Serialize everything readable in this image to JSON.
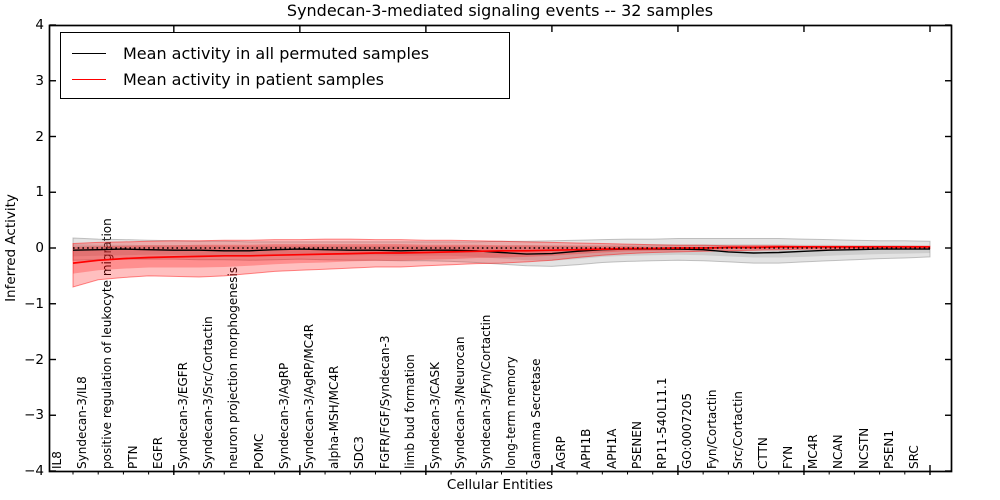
{
  "title": "Syndecan-3-mediated signaling events -- 32 samples",
  "legend": {
    "items": [
      {
        "label": "Mean activity in all permuted samples",
        "color": "#000000"
      },
      {
        "label": "Mean activity in patient samples",
        "color": "#ff0000"
      }
    ]
  },
  "colors": {
    "permuted_line": "#000000",
    "patient_line": "#ff0000",
    "permuted_band": "#808080",
    "patient_band": "#ff0000",
    "background": "#ffffff"
  },
  "chart_data": {
    "type": "line",
    "title": "Syndecan-3-mediated signaling events -- 32 samples",
    "xlabel": "Cellular Entities",
    "ylabel": "Inferred Activity",
    "ylim": [
      -4,
      4
    ],
    "grid": false,
    "legend_position": "upper left",
    "yticks": {
      "values": [
        4,
        3,
        2,
        1,
        0,
        -1,
        -2,
        -3,
        -4
      ],
      "labels": [
        "4",
        "3",
        "2",
        "1",
        "0",
        "−1",
        "−2",
        "−3",
        "−4"
      ]
    },
    "xtick_major_indices": [
      4,
      9,
      14,
      19,
      24,
      29,
      34
    ],
    "categories": [
      "IL8",
      "Syndecan-3/IL8",
      "positive regulation of leukocyte migration",
      "PTN",
      "EGFR",
      "Syndecan-3/EGFR",
      "Syndecan-3/Src/Cortactin",
      "neuron projection morphogenesis",
      "POMC",
      "Syndecan-3/AgRP",
      "Syndecan-3/AgRP/MC4R",
      "alpha-MSH/MC4R",
      "SDC3",
      "FGFR/FGF/Syndecan-3",
      "limb bud formation",
      "Syndecan-3/CASK",
      "Syndecan-3/Neurocan",
      "Syndecan-3/Fyn/Cortactin",
      "long-term memory",
      "Gamma Secretase",
      "AGRP",
      "APH1B",
      "APH1A",
      "PSENEN",
      "RP11-540L11.1",
      "GO:0007205",
      "Fyn/Cortactin",
      "Src/Cortactin",
      "CTTN",
      "FYN",
      "MC4R",
      "NCAN",
      "NCSTN",
      "PSEN1",
      "SRC"
    ],
    "zero_line": 0,
    "series": [
      {
        "name": "Mean activity in all permuted samples",
        "color": "#000000",
        "width": 1.4,
        "values": [
          -0.04,
          -0.03,
          -0.02,
          -0.03,
          -0.04,
          -0.04,
          -0.05,
          -0.05,
          -0.03,
          -0.02,
          -0.03,
          -0.04,
          -0.04,
          -0.05,
          -0.04,
          -0.04,
          -0.05,
          -0.08,
          -0.11,
          -0.1,
          -0.06,
          -0.03,
          -0.02,
          -0.02,
          -0.02,
          -0.03,
          -0.07,
          -0.09,
          -0.08,
          -0.06,
          -0.04,
          -0.03,
          -0.02,
          -0.02,
          -0.02
        ]
      },
      {
        "name": "Mean activity in patient samples",
        "color": "#ff0000",
        "width": 1.7,
        "values": [
          -0.27,
          -0.22,
          -0.19,
          -0.17,
          -0.16,
          -0.15,
          -0.14,
          -0.14,
          -0.13,
          -0.12,
          -0.11,
          -0.1,
          -0.09,
          -0.09,
          -0.08,
          -0.07,
          -0.06,
          -0.05,
          -0.05,
          -0.04,
          -0.03,
          -0.02,
          -0.01,
          -0.01,
          0.0,
          0.0,
          0.01,
          0.01,
          0.02,
          0.02,
          0.02,
          0.02,
          0.02,
          0.02,
          0.02
        ]
      }
    ],
    "bands": [
      {
        "name": "permuted-outer",
        "color": "#808080",
        "opacity": 0.22,
        "edge": "#808080",
        "upper": [
          0.18,
          0.16,
          0.15,
          0.14,
          0.13,
          0.12,
          0.12,
          0.11,
          0.11,
          0.11,
          0.11,
          0.11,
          0.11,
          0.11,
          0.11,
          0.11,
          0.11,
          0.12,
          0.12,
          0.13,
          0.14,
          0.15,
          0.16,
          0.16,
          0.17,
          0.17,
          0.17,
          0.17,
          0.17,
          0.16,
          0.15,
          0.14,
          0.13,
          0.13,
          0.12
        ],
        "lower": [
          -0.22,
          -0.21,
          -0.2,
          -0.2,
          -0.2,
          -0.21,
          -0.21,
          -0.22,
          -0.21,
          -0.2,
          -0.21,
          -0.22,
          -0.22,
          -0.23,
          -0.23,
          -0.24,
          -0.26,
          -0.29,
          -0.32,
          -0.33,
          -0.3,
          -0.26,
          -0.24,
          -0.23,
          -0.22,
          -0.23,
          -0.25,
          -0.27,
          -0.27,
          -0.25,
          -0.23,
          -0.21,
          -0.19,
          -0.18,
          -0.16
        ]
      },
      {
        "name": "permuted-inner",
        "color": "#808080",
        "opacity": 0.22,
        "edge": "none",
        "upper": [
          0.07,
          0.06,
          0.06,
          0.05,
          0.05,
          0.05,
          0.04,
          0.04,
          0.04,
          0.04,
          0.04,
          0.04,
          0.04,
          0.04,
          0.04,
          0.04,
          0.04,
          0.04,
          0.05,
          0.05,
          0.05,
          0.06,
          0.06,
          0.07,
          0.07,
          0.07,
          0.07,
          0.07,
          0.07,
          0.06,
          0.06,
          0.05,
          0.05,
          0.05,
          0.04
        ],
        "lower": [
          -0.15,
          -0.14,
          -0.13,
          -0.12,
          -0.12,
          -0.13,
          -0.13,
          -0.14,
          -0.13,
          -0.12,
          -0.12,
          -0.13,
          -0.13,
          -0.14,
          -0.14,
          -0.14,
          -0.16,
          -0.19,
          -0.22,
          -0.23,
          -0.2,
          -0.16,
          -0.14,
          -0.13,
          -0.12,
          -0.13,
          -0.15,
          -0.17,
          -0.17,
          -0.16,
          -0.14,
          -0.12,
          -0.11,
          -0.1,
          -0.09
        ]
      },
      {
        "name": "patient-outer",
        "color": "#ff0000",
        "opacity": 0.25,
        "edge": "#ff0000",
        "upper": [
          0.08,
          0.1,
          0.11,
          0.12,
          0.13,
          0.13,
          0.14,
          0.14,
          0.15,
          0.15,
          0.16,
          0.16,
          0.15,
          0.15,
          0.14,
          0.14,
          0.13,
          0.12,
          0.11,
          0.1,
          0.09,
          0.08,
          0.07,
          0.06,
          0.05,
          0.05,
          0.04,
          0.04,
          0.04,
          0.03,
          0.03,
          0.03,
          0.03,
          0.03,
          0.03
        ],
        "lower": [
          -0.7,
          -0.57,
          -0.53,
          -0.5,
          -0.51,
          -0.52,
          -0.5,
          -0.46,
          -0.42,
          -0.4,
          -0.38,
          -0.36,
          -0.34,
          -0.34,
          -0.32,
          -0.3,
          -0.28,
          -0.27,
          -0.25,
          -0.22,
          -0.17,
          -0.13,
          -0.1,
          -0.08,
          -0.07,
          -0.06,
          -0.05,
          -0.04,
          -0.03,
          -0.02,
          -0.02,
          -0.01,
          -0.01,
          -0.01,
          -0.01
        ]
      },
      {
        "name": "patient-inner",
        "color": "#ff0000",
        "opacity": 0.25,
        "edge": "none",
        "upper": [
          0.02,
          0.03,
          0.04,
          0.05,
          0.05,
          0.06,
          0.06,
          0.06,
          0.07,
          0.07,
          0.07,
          0.07,
          0.07,
          0.07,
          0.06,
          0.06,
          0.06,
          0.05,
          0.05,
          0.04,
          0.04,
          0.03,
          0.03,
          0.02,
          0.02,
          0.02,
          0.02,
          0.02,
          0.03,
          0.02,
          0.02,
          0.02,
          0.02,
          0.02,
          0.02
        ],
        "lower": [
          -0.46,
          -0.4,
          -0.37,
          -0.35,
          -0.35,
          -0.35,
          -0.34,
          -0.32,
          -0.29,
          -0.27,
          -0.26,
          -0.24,
          -0.23,
          -0.23,
          -0.21,
          -0.2,
          -0.18,
          -0.17,
          -0.16,
          -0.14,
          -0.11,
          -0.08,
          -0.06,
          -0.05,
          -0.04,
          -0.03,
          -0.02,
          -0.02,
          -0.01,
          -0.01,
          0.0,
          0.0,
          0.0,
          0.0,
          0.0
        ]
      }
    ]
  }
}
